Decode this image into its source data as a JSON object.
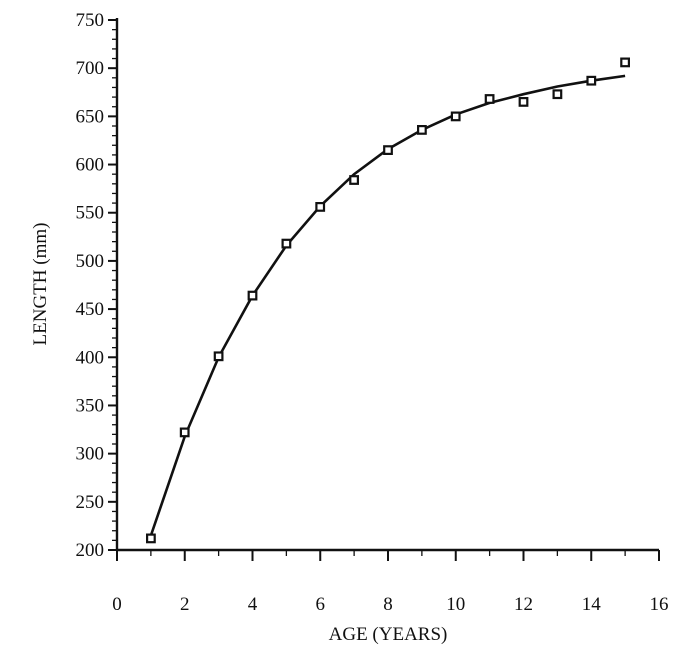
{
  "chart_data": {
    "type": "scatter",
    "title": "",
    "xlabel": "AGE (YEARS)",
    "ylabel": "LENGTH (mm)",
    "xlim": [
      0,
      16
    ],
    "ylim": [
      200,
      750
    ],
    "x_ticks": [
      "0",
      "2",
      "4",
      "6",
      "8",
      "10",
      "12",
      "14",
      "16"
    ],
    "y_ticks": [
      "200",
      "250",
      "300",
      "350",
      "400",
      "450",
      "500",
      "550",
      "600",
      "650",
      "700",
      "750"
    ],
    "grid": false,
    "legend": "none",
    "series": [
      {
        "marker": "open-square",
        "color": "#111111",
        "points": [
          {
            "x": 1,
            "y": 212
          },
          {
            "x": 2,
            "y": 322
          },
          {
            "x": 3,
            "y": 401
          },
          {
            "x": 4,
            "y": 464
          },
          {
            "x": 5,
            "y": 518
          },
          {
            "x": 6,
            "y": 556
          },
          {
            "x": 7,
            "y": 584
          },
          {
            "x": 8,
            "y": 615
          },
          {
            "x": 9,
            "y": 636
          },
          {
            "x": 10,
            "y": 650
          },
          {
            "x": 11,
            "y": 668
          },
          {
            "x": 12,
            "y": 665
          },
          {
            "x": 13,
            "y": 673
          },
          {
            "x": 14,
            "y": 687
          },
          {
            "x": 15,
            "y": 706
          }
        ]
      }
    ],
    "fit_curve": {
      "style": "solid",
      "color": "#111111",
      "points": [
        {
          "x": 1,
          "y": 215
        },
        {
          "x": 2,
          "y": 318
        },
        {
          "x": 3,
          "y": 400
        },
        {
          "x": 4,
          "y": 464
        },
        {
          "x": 5,
          "y": 516
        },
        {
          "x": 6,
          "y": 557
        },
        {
          "x": 7,
          "y": 590
        },
        {
          "x": 8,
          "y": 616
        },
        {
          "x": 9,
          "y": 636
        },
        {
          "x": 10,
          "y": 652
        },
        {
          "x": 11,
          "y": 664
        },
        {
          "x": 12,
          "y": 673
        },
        {
          "x": 13,
          "y": 681
        },
        {
          "x": 14,
          "y": 687
        },
        {
          "x": 15,
          "y": 692
        }
      ]
    }
  }
}
